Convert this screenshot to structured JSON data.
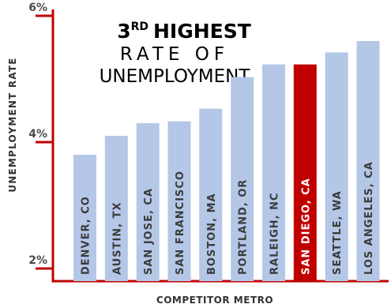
{
  "chart_data": {
    "type": "bar",
    "title_lines": [
      "3RD HIGHEST",
      "RATE OF",
      "UNEMPLOYMENT"
    ],
    "title_rank": "3",
    "title_rank_suffix": "RD",
    "title_rest": "HIGHEST",
    "ylabel": "UNEMPLOYMENT RATE",
    "xlabel": "COMPETITOR METRO",
    "y_ticks": [
      "2%",
      "4%",
      "6%"
    ],
    "ylim": [
      1.8,
      6.1
    ],
    "categories": [
      "DENVER, CO",
      "AUSTIN, TX",
      "SAN JOSE, CA",
      "SAN FRANCISCO",
      "BOSTON, MA",
      "PORTLAND, OR",
      "RALEIGH, NC",
      "SAN DIEGO, CA",
      "SEATTLE, WA",
      "LOS ANGELES, CA"
    ],
    "values": [
      3.8,
      4.1,
      4.3,
      4.33,
      4.53,
      5.03,
      5.23,
      5.23,
      5.42,
      5.6
    ],
    "highlight_category": "SAN DIEGO, CA",
    "colors": {
      "bar": "#b4c7e7",
      "highlight_bar": "#c00000",
      "axis": "#c00000",
      "title": "#c00000",
      "bar_label": "#3b3b3b",
      "highlight_label": "#ffffff"
    }
  }
}
